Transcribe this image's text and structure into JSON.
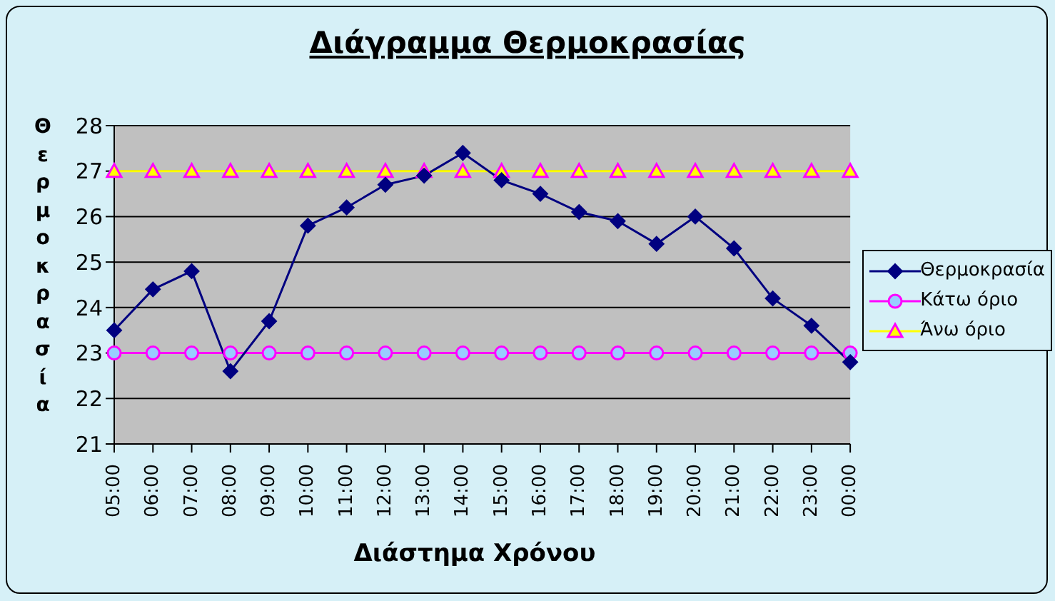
{
  "chart_data": {
    "type": "line",
    "title": "Διάγραμμα Θερμοκρασίας",
    "xlabel": "Διάστημα Χρόνου",
    "ylabel": "Θερμοκρασία",
    "categories": [
      "05:00",
      "06:00",
      "07:00",
      "08:00",
      "09:00",
      "10:00",
      "11:00",
      "12:00",
      "13:00",
      "14:00",
      "15:00",
      "16:00",
      "17:00",
      "18:00",
      "19:00",
      "20:00",
      "21:00",
      "22:00",
      "23:00",
      "00:00"
    ],
    "series": [
      {
        "name": "Θερμοκρασία",
        "color": "#000080",
        "marker": "diamond",
        "values": [
          23.5,
          24.4,
          24.8,
          22.6,
          23.7,
          25.8,
          26.2,
          26.7,
          26.9,
          27.4,
          26.8,
          26.5,
          26.1,
          25.9,
          25.4,
          26.0,
          25.3,
          24.2,
          23.6,
          22.8
        ]
      },
      {
        "name": "Κάτω όριο",
        "color": "#ff00ff",
        "marker": "circle",
        "values": [
          23,
          23,
          23,
          23,
          23,
          23,
          23,
          23,
          23,
          23,
          23,
          23,
          23,
          23,
          23,
          23,
          23,
          23,
          23,
          23
        ]
      },
      {
        "name": "Άνω όριο",
        "color": "#ffff00",
        "marker": "triangle",
        "values": [
          27,
          27,
          27,
          27,
          27,
          27,
          27,
          27,
          27,
          27,
          27,
          27,
          27,
          27,
          27,
          27,
          27,
          27,
          27,
          27
        ]
      }
    ],
    "ylim": [
      21,
      28
    ],
    "yticks": [
      21,
      22,
      23,
      24,
      25,
      26,
      27,
      28
    ],
    "grid": "y",
    "legend": "right"
  }
}
